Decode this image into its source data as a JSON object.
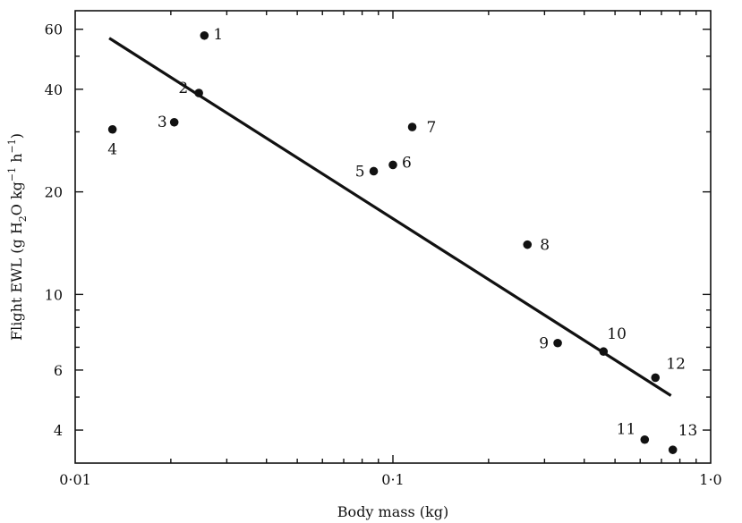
{
  "chart_data": {
    "type": "scatter",
    "xlabel": "Body mass (kg)",
    "ylabel_main": "Flight EWL (g H",
    "ylabel_sub": "2",
    "ylabel_o": "O kg",
    "ylabel_sup1": "−1",
    "ylabel_h": " h",
    "ylabel_sup2": "−1",
    "ylabel_close": ")",
    "x_scale": "log",
    "y_scale": "log",
    "xlim": [
      0.01,
      1.0
    ],
    "ylim": [
      3.2,
      68
    ],
    "x_ticks": [
      {
        "value": 0.01,
        "label": "0·01"
      },
      {
        "value": 0.1,
        "label": "0·1"
      },
      {
        "value": 1.0,
        "label": "1·0"
      }
    ],
    "y_ticks": [
      {
        "value": 4,
        "label": "4"
      },
      {
        "value": 6,
        "label": "6"
      },
      {
        "value": 10,
        "label": "10"
      },
      {
        "value": 20,
        "label": "20"
      },
      {
        "value": 40,
        "label": "40"
      },
      {
        "value": 60,
        "label": "60"
      }
    ],
    "grid": false,
    "points": [
      {
        "label": "1",
        "x": 0.0255,
        "y": 57.5
      },
      {
        "label": "2",
        "x": 0.0245,
        "y": 39
      },
      {
        "label": "3",
        "x": 0.0205,
        "y": 32
      },
      {
        "label": "4",
        "x": 0.0131,
        "y": 30.5
      },
      {
        "label": "5",
        "x": 0.087,
        "y": 23
      },
      {
        "label": "6",
        "x": 0.1,
        "y": 24
      },
      {
        "label": "7",
        "x": 0.115,
        "y": 31
      },
      {
        "label": "8",
        "x": 0.265,
        "y": 14
      },
      {
        "label": "9",
        "x": 0.33,
        "y": 7.2
      },
      {
        "label": "10",
        "x": 0.46,
        "y": 6.8
      },
      {
        "label": "11",
        "x": 0.62,
        "y": 3.75
      },
      {
        "label": "12",
        "x": 0.67,
        "y": 5.7
      },
      {
        "label": "13",
        "x": 0.76,
        "y": 3.5
      }
    ],
    "fit_line": [
      {
        "x": 0.0128,
        "y": 56.5
      },
      {
        "x": 0.75,
        "y": 5.05
      }
    ]
  }
}
